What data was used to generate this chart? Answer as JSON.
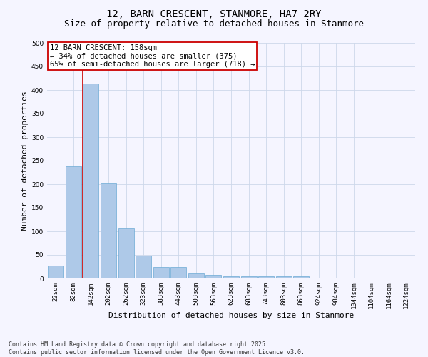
{
  "title": "12, BARN CRESCENT, STANMORE, HA7 2RY",
  "subtitle": "Size of property relative to detached houses in Stanmore",
  "xlabel": "Distribution of detached houses by size in Stanmore",
  "ylabel": "Number of detached properties",
  "bin_labels": [
    "22sqm",
    "82sqm",
    "142sqm",
    "202sqm",
    "262sqm",
    "323sqm",
    "383sqm",
    "443sqm",
    "503sqm",
    "563sqm",
    "623sqm",
    "683sqm",
    "743sqm",
    "803sqm",
    "863sqm",
    "924sqm",
    "984sqm",
    "1044sqm",
    "1104sqm",
    "1164sqm",
    "1224sqm"
  ],
  "bar_heights": [
    28,
    238,
    413,
    201,
    106,
    48,
    25,
    24,
    11,
    7,
    4,
    4,
    4,
    5,
    4,
    0,
    0,
    0,
    0,
    0,
    2
  ],
  "bar_color": "#aec9e8",
  "bar_edge_color": "#6aaad4",
  "grid_color": "#cdd8ea",
  "background_color": "#f5f5ff",
  "vline_color": "#cc0000",
  "annotation_text": "12 BARN CRESCENT: 158sqm\n← 34% of detached houses are smaller (375)\n65% of semi-detached houses are larger (718) →",
  "annotation_box_facecolor": "#ffffff",
  "annotation_box_edgecolor": "#cc0000",
  "ylim": [
    0,
    500
  ],
  "yticks": [
    0,
    50,
    100,
    150,
    200,
    250,
    300,
    350,
    400,
    450,
    500
  ],
  "footer_line1": "Contains HM Land Registry data © Crown copyright and database right 2025.",
  "footer_line2": "Contains public sector information licensed under the Open Government Licence v3.0.",
  "title_fontsize": 10,
  "subtitle_fontsize": 9,
  "axis_label_fontsize": 8,
  "tick_fontsize": 6.5,
  "annotation_fontsize": 7.5,
  "footer_fontsize": 6
}
